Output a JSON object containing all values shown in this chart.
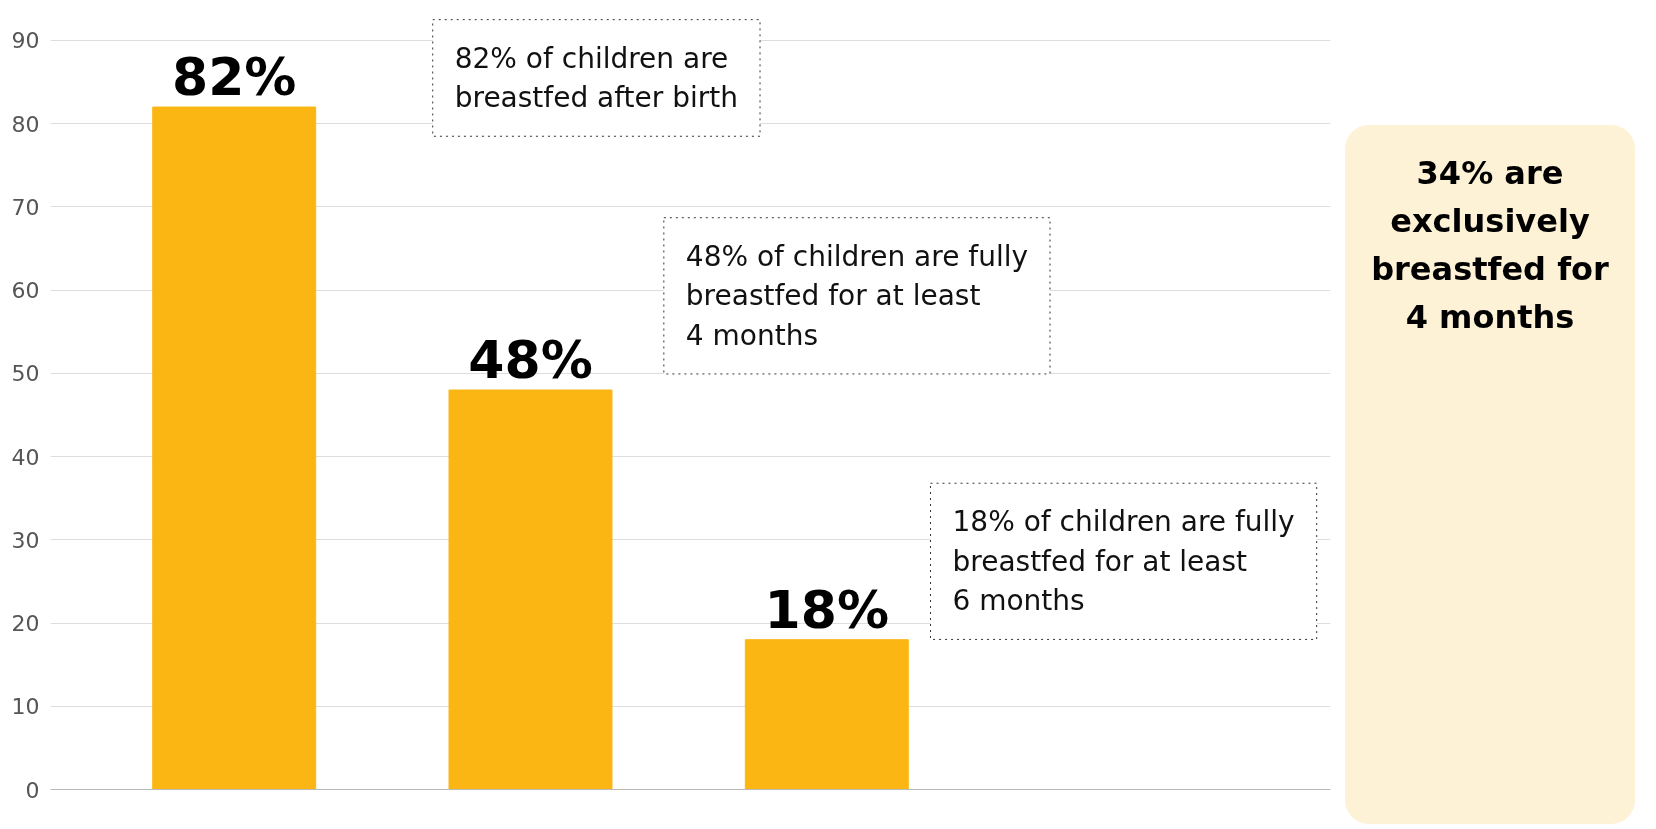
{
  "chart_data": {
    "type": "bar",
    "categories": [
      null,
      null,
      null
    ],
    "values": [
      82,
      48,
      18
    ],
    "color": "#fbb613",
    "value_labels": [
      "82%",
      "48%",
      "18%"
    ],
    "ylim": [
      0,
      90
    ],
    "yticks": [
      0,
      10,
      20,
      30,
      40,
      50,
      60,
      70,
      80,
      90
    ],
    "grid": "y",
    "tick_labels": "y",
    "legend": false,
    "annotations": [
      "82% of children are\nbreastfed after birth",
      "48% of children are fully\nbreastfed for at least\n4 months",
      "18% of children are fully\nbreastfed for at least\n6 months",
      "34% are\nexclusively\nbreastfed for\n4 months"
    ]
  }
}
